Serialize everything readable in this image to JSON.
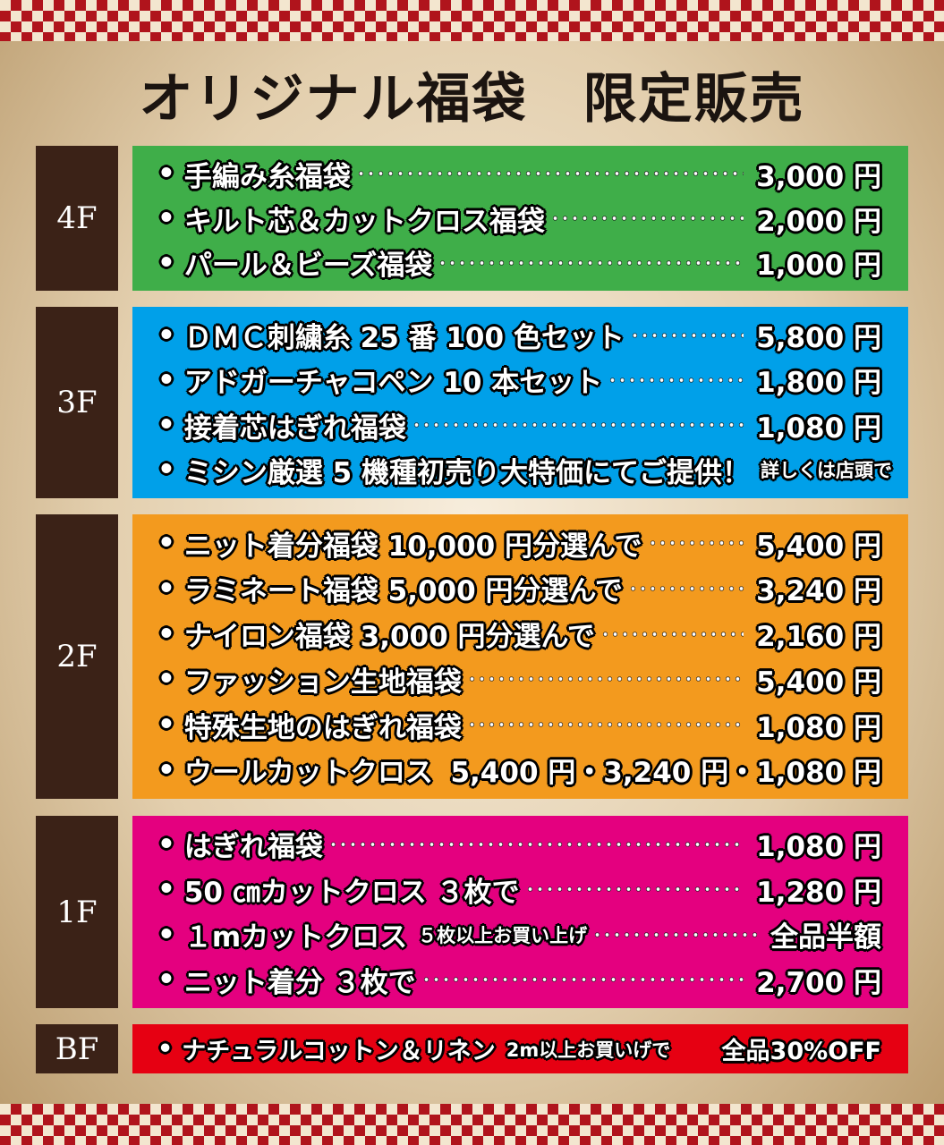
{
  "header": {
    "title": "オリジナル福袋　限定販売"
  },
  "floors": [
    {
      "label": "4F",
      "color": "#3fae49",
      "items": [
        {
          "name": "手編み糸福袋",
          "price": "3,000 円",
          "dotted": true
        },
        {
          "name": "キルト芯＆カットクロス福袋",
          "price": "2,000 円",
          "dotted": true
        },
        {
          "name": "パール＆ビーズ福袋",
          "price": "1,000 円",
          "dotted": true
        }
      ]
    },
    {
      "label": "3F",
      "color": "#00a0e9",
      "items": [
        {
          "name": "ＤＭＣ刺繍糸 25 番 100 色セット",
          "price": "5,800 円",
          "dotted": true
        },
        {
          "name": "アドガーチャコペン 10 本セット",
          "price": "1,800 円",
          "dotted": true
        },
        {
          "name": "接着芯はぎれ福袋",
          "price": "1,080 円",
          "dotted": true
        },
        {
          "name": "ミシン厳選 5 機種初売り大特価にてご提供！",
          "note": "詳しくは店頭で",
          "dotted": false
        }
      ]
    },
    {
      "label": "2F",
      "color": "#f39a1e",
      "items": [
        {
          "name": "ニット着分福袋 10,000 円分選んで",
          "price": "5,400 円",
          "dotted": true
        },
        {
          "name": "ラミネート福袋 5,000 円分選んで",
          "price": "3,240 円",
          "dotted": true
        },
        {
          "name": "ナイロン福袋 3,000 円分選んで",
          "price": "2,160 円",
          "dotted": true
        },
        {
          "name": "ファッション生地福袋",
          "price": "5,400 円",
          "dotted": true
        },
        {
          "name": "特殊生地のはぎれ福袋",
          "price": "1,080 円",
          "dotted": true
        },
        {
          "name": "ウールカットクロス",
          "price": "5,400 円・3,240 円・1,080 円",
          "dotted": false
        }
      ]
    },
    {
      "label": "1F",
      "color": "#e4007f",
      "items": [
        {
          "name": "はぎれ福袋",
          "price": "1,080 円",
          "dotted": true
        },
        {
          "name": "50 ㎝カットクロス ３枚で",
          "price": "1,280 円",
          "dotted": true
        },
        {
          "name": "１mカットクロス",
          "note": "５枚以上お買い上げ",
          "price": "全品半額",
          "dotted": true
        },
        {
          "name": "ニット着分 ３枚で",
          "price": "2,700 円",
          "dotted": true
        }
      ]
    },
    {
      "label": "BF",
      "color": "#e60012",
      "items": [
        {
          "name": "ナチュラルコットン＆リネン",
          "note": "2m以上お買いげで",
          "price": "全品30%OFF",
          "dotted": false
        }
      ]
    }
  ]
}
